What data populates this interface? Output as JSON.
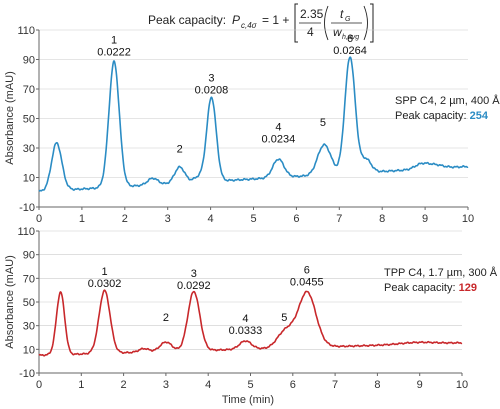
{
  "formula": {
    "label": "Peak capacity:",
    "symbol": "P",
    "subscript": "c,4σ",
    "rhs_one": "= 1 +",
    "frac_num": "2.35",
    "frac_den": "4",
    "t_num": "t",
    "t_num_sub": "G",
    "t_den": "w",
    "t_den_sub": "h,avg"
  },
  "chart_data": [
    {
      "type": "line",
      "name": "top",
      "xlabel": "",
      "ylabel": "Absorbance (mAU)",
      "xlim": [
        0,
        10
      ],
      "ylim": [
        -10,
        110
      ],
      "xticks": [
        0,
        1,
        2,
        3,
        4,
        5,
        6,
        7,
        8,
        9,
        10
      ],
      "yticks": [
        -10,
        10,
        30,
        50,
        70,
        90,
        110
      ],
      "color": "#2b8cc4",
      "baseline": {
        "start": 0.5,
        "end": 17.5
      },
      "peaks": [
        {
          "x": 0.42,
          "height": 35.5,
          "width": 0.012
        },
        {
          "x": 0.48,
          "height": -4,
          "width": 0.01
        },
        {
          "x": 1.75,
          "height": 85,
          "width": 0.012
        },
        {
          "x": 2.65,
          "height": 4.5,
          "width": 0.012
        },
        {
          "x": 3.28,
          "height": 11,
          "width": 0.012
        },
        {
          "x": 3.72,
          "height": 3.5,
          "width": 0.012
        },
        {
          "x": 4.02,
          "height": 57,
          "width": 0.011
        },
        {
          "x": 5.58,
          "height": 12.5,
          "width": 0.013
        },
        {
          "x": 6.62,
          "height": 18,
          "width": 0.014
        },
        {
          "x": 6.78,
          "height": 5,
          "width": 0.012
        },
        {
          "x": 7.25,
          "height": 79,
          "width": 0.012
        },
        {
          "x": 7.62,
          "height": 9,
          "width": 0.012
        },
        {
          "x": 8.9,
          "height": 3,
          "width": 0.015
        },
        {
          "x": 9.2,
          "height": 2.5,
          "width": 0.02
        }
      ],
      "annotations": [
        {
          "x": 1.75,
          "y": 101,
          "number": "1",
          "value": "0.0222"
        },
        {
          "x": 3.28,
          "y": 27,
          "number": "2",
          "value": ""
        },
        {
          "x": 4.02,
          "y": 75,
          "number": "3",
          "value": "0.0208"
        },
        {
          "x": 5.58,
          "y": 42,
          "number": "4",
          "value": "0.0234"
        },
        {
          "x": 6.62,
          "y": 45,
          "number": "5",
          "value": ""
        },
        {
          "x": 7.25,
          "y": 102,
          "number": "6",
          "value": "0.0264"
        }
      ],
      "info": {
        "line1": "SPP C4, 2 µm, 400 Å",
        "capacity_label": "Peak capacity: ",
        "capacity_value": "254",
        "capacity_color": "#2b8cc4"
      }
    },
    {
      "type": "line",
      "name": "bottom",
      "xlabel": "Time (min)",
      "ylabel": "Absorbance (mAU)",
      "xlim": [
        0,
        10
      ],
      "ylim": [
        -10,
        110
      ],
      "xticks": [
        0,
        1,
        2,
        3,
        4,
        5,
        6,
        7,
        8,
        9,
        10
      ],
      "yticks": [
        -10,
        10,
        30,
        50,
        70,
        90,
        110
      ],
      "color": "#c8282b",
      "baseline": {
        "start": 5,
        "end": 15.5
      },
      "peaks": [
        {
          "x": 0.52,
          "height": 64,
          "width": 0.01
        },
        {
          "x": 0.57,
          "height": -13,
          "width": 0.01
        },
        {
          "x": 1.55,
          "height": 53,
          "width": 0.013
        },
        {
          "x": 2.48,
          "height": 3,
          "width": 0.012
        },
        {
          "x": 3.0,
          "height": 8,
          "width": 0.014
        },
        {
          "x": 3.66,
          "height": 50,
          "width": 0.014
        },
        {
          "x": 4.88,
          "height": 7,
          "width": 0.014
        },
        {
          "x": 5.8,
          "height": 13,
          "width": 0.018
        },
        {
          "x": 6.0,
          "height": 4,
          "width": 0.014
        },
        {
          "x": 6.33,
          "height": 45,
          "width": 0.02
        },
        {
          "x": 6.55,
          "height": 3,
          "width": 0.02
        },
        {
          "x": 8.95,
          "height": 1.5,
          "width": 0.04
        }
      ],
      "annotations": [
        {
          "x": 1.55,
          "y": 73,
          "number": "1",
          "value": "0.0302"
        },
        {
          "x": 3.0,
          "y": 34,
          "number": "2",
          "value": ""
        },
        {
          "x": 3.66,
          "y": 71,
          "number": "3",
          "value": "0.0292"
        },
        {
          "x": 4.88,
          "y": 33,
          "number": "4",
          "value": "0.0333"
        },
        {
          "x": 5.8,
          "y": 34,
          "number": "5",
          "value": ""
        },
        {
          "x": 6.33,
          "y": 74,
          "number": "6",
          "value": "0.0455"
        }
      ],
      "info": {
        "line1": "TPP C4, 1.7 µm, 300 Å",
        "capacity_label": "Peak capacity: ",
        "capacity_value": "129",
        "capacity_color": "#c8282b"
      }
    }
  ]
}
